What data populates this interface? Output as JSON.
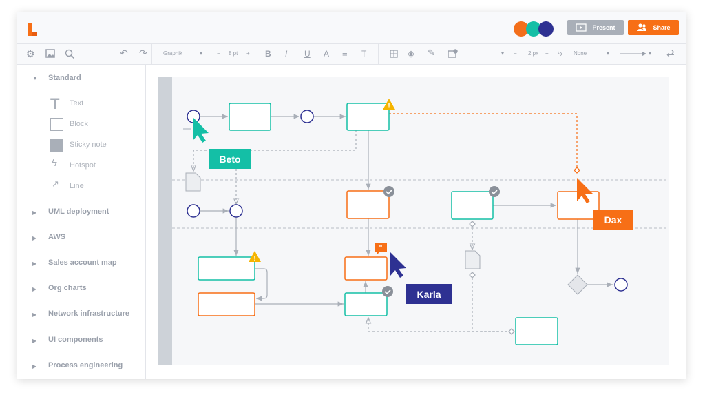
{
  "header": {
    "present_label": "Present",
    "share_label": "Share",
    "collaborator_colors": [
      "#f36f1b",
      "#14bfa6",
      "#2e3192"
    ],
    "brand_color": "#f76f16"
  },
  "toolbar": {
    "font": "Graphik",
    "font_size": "8 pt",
    "line_width": "2 px",
    "line_endpoint": "None"
  },
  "sidebar": {
    "sections": [
      {
        "label": "Standard",
        "expanded": true,
        "items": [
          {
            "label": "Text",
            "icon": "text-icon"
          },
          {
            "label": "Block",
            "icon": "block-icon"
          },
          {
            "label": "Sticky note",
            "icon": "sticky-note-icon"
          },
          {
            "label": "Hotspot",
            "icon": "lightning-icon"
          },
          {
            "label": "Line",
            "icon": "line-arrow-icon"
          }
        ]
      },
      {
        "label": "UML deployment"
      },
      {
        "label": "AWS"
      },
      {
        "label": "Sales account map"
      },
      {
        "label": "Org charts"
      },
      {
        "label": "Network infrastructure"
      },
      {
        "label": "UI components"
      },
      {
        "label": "Process engineering"
      }
    ]
  },
  "canvas": {
    "cursors": [
      {
        "name": "Beto",
        "color": "#14bfa6"
      },
      {
        "name": "Dax",
        "color": "#f76f16"
      },
      {
        "name": "Karla",
        "color": "#2e3192"
      }
    ]
  }
}
